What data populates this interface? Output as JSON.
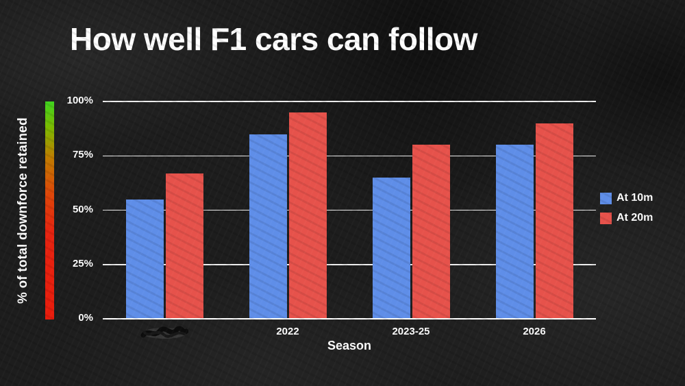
{
  "title": "How well F1 cars can follow",
  "colors": {
    "background": "#1d1d1d",
    "text": "#ffffff",
    "grid": "#ffffff",
    "series_blue": "#5f8ee8",
    "series_red": "#e6524b",
    "gradient_axis_top": "#3fd41e",
    "gradient_axis_bottom": "#e81c0c"
  },
  "chart_data": {
    "type": "bar",
    "title": "How well F1 cars can follow",
    "xlabel": "Season",
    "ylabel": "% of total downforce retained",
    "ylim": [
      0,
      100
    ],
    "yticks": [
      0,
      25,
      50,
      75,
      100
    ],
    "ytick_labels": [
      "0%",
      "25%",
      "50%",
      "75%",
      "100%"
    ],
    "categories": [
      "",
      "2022",
      "2023-25",
      "2026"
    ],
    "category_obscured": [
      true,
      false,
      false,
      false
    ],
    "series": [
      {
        "name": "At 10m",
        "color": "#5f8ee8",
        "values": [
          55,
          85,
          65,
          80
        ]
      },
      {
        "name": "At 20m",
        "color": "#e6524b",
        "values": [
          67,
          95,
          80,
          90
        ]
      }
    ],
    "grid": true,
    "legend_position": "right"
  }
}
